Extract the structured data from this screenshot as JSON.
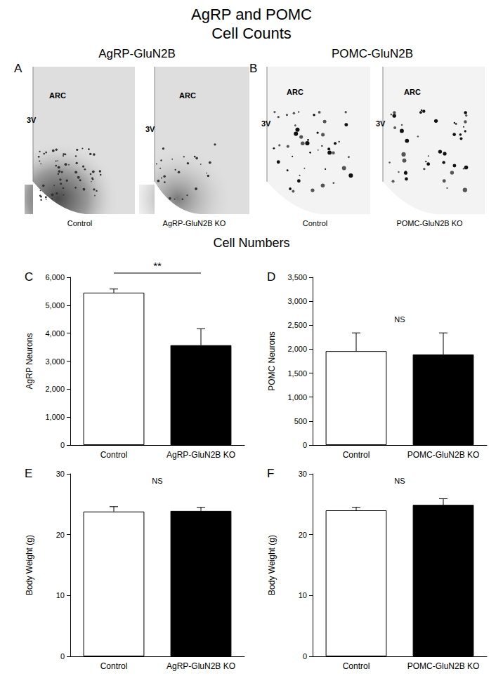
{
  "title": [
    "AgRP and POMC",
    "Cell Counts"
  ],
  "section_title": "Cell Numbers",
  "micrographs": [
    {
      "panel": "A",
      "title": "AgRP-GluN2B",
      "images": [
        {
          "caption": "Control",
          "labels": [
            "ARC",
            "3V"
          ]
        },
        {
          "caption": "AgRP-GluN2B KO",
          "labels": [
            "ARC",
            "3V"
          ]
        }
      ]
    },
    {
      "panel": "B",
      "title": "POMC-GluN2B",
      "images": [
        {
          "caption": "Control",
          "labels": [
            "ARC",
            "3V"
          ]
        },
        {
          "caption": "POMC-GluN2B KO",
          "labels": [
            "ARC",
            "3V"
          ]
        }
      ]
    }
  ],
  "chart_data": [
    {
      "panel": "C",
      "type": "bar",
      "categories": [
        "Control",
        "AgRP-GluN2B KO"
      ],
      "values": [
        5450,
        3570
      ],
      "errors": [
        130,
        590
      ],
      "colors": [
        "#ffffff",
        "#000000"
      ],
      "ylabel": "AgRP Neurons",
      "ylim": [
        0,
        6000
      ],
      "yticks": [
        0,
        {
          "value": 1000,
          "label": "1,000"
        },
        {
          "value": 2000,
          "label": "2,000"
        },
        {
          "value": 3000,
          "label": "3,000"
        },
        {
          "value": 4000,
          "label": "4,000"
        },
        {
          "value": 5000,
          "label": "5,000"
        },
        {
          "value": 6000,
          "label": "6,000"
        }
      ],
      "grid": false,
      "annotation": {
        "text": "**",
        "categories": [
          "Control",
          "AgRP-GluN2B KO"
        ]
      }
    },
    {
      "panel": "D",
      "type": "bar",
      "categories": [
        "Control",
        "POMC-GluN2B KO"
      ],
      "values": [
        1960,
        1890
      ],
      "errors": [
        380,
        450
      ],
      "colors": [
        "#ffffff",
        "#000000"
      ],
      "ylabel": "POMC Neurons",
      "ylim": [
        0,
        3500
      ],
      "yticks": [
        0,
        500,
        {
          "value": 1000,
          "label": "1,000"
        },
        {
          "value": 1500,
          "label": "1,500"
        },
        {
          "value": 2000,
          "label": "2,000"
        },
        {
          "value": 2500,
          "label": "2,500"
        },
        {
          "value": 3000,
          "label": "3,000"
        },
        {
          "value": 3500,
          "label": "3,500"
        }
      ],
      "grid": false,
      "annotation": {
        "text": "NS"
      }
    },
    {
      "panel": "E",
      "type": "bar",
      "categories": [
        "Control",
        "AgRP-GluN2B KO"
      ],
      "values": [
        23.8,
        23.9
      ],
      "errors": [
        0.8,
        0.6
      ],
      "colors": [
        "#ffffff",
        "#000000"
      ],
      "ylabel": "Body Weight (g)",
      "ylim": [
        0,
        30
      ],
      "yticks": [
        0,
        10,
        20,
        30
      ],
      "grid": false,
      "annotation": {
        "text": "NS"
      }
    },
    {
      "panel": "F",
      "type": "bar",
      "categories": [
        "Control",
        "POMC-GluN2B KO"
      ],
      "values": [
        24.0,
        24.9
      ],
      "errors": [
        0.5,
        1.0
      ],
      "colors": [
        "#ffffff",
        "#000000"
      ],
      "ylabel": "Body Weight (g)",
      "ylim": [
        0,
        30
      ],
      "yticks": [
        0,
        10,
        20,
        30
      ],
      "grid": false,
      "annotation": {
        "text": "NS"
      }
    }
  ]
}
